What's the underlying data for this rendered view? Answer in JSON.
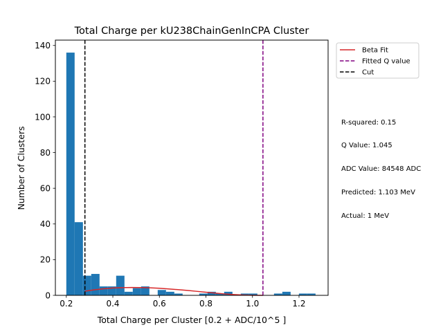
{
  "chart_data": {
    "type": "bar",
    "title": "Total Charge per kU238ChainGenInCPA Cluster",
    "xlabel": "Total Charge per Cluster [0.2 + ADC/10^5 ]",
    "ylabel": "Number of Clusters",
    "xlim": [
      0.153,
      1.325
    ],
    "ylim": [
      0,
      143
    ],
    "xticks": [
      0.2,
      0.4,
      0.6,
      0.8,
      1.0,
      1.2
    ],
    "xtick_labels": [
      "0.2",
      "0.4",
      "0.6",
      "0.8",
      "1.0",
      "1.2"
    ],
    "yticks": [
      0,
      20,
      40,
      60,
      80,
      100,
      120,
      140
    ],
    "ytick_labels": [
      "0",
      "20",
      "40",
      "60",
      "80",
      "100",
      "120",
      "140"
    ],
    "bar_color": "#1f77b4",
    "histogram": {
      "bin_edges": [
        0.2,
        0.2357,
        0.2714,
        0.3071,
        0.3428,
        0.3785,
        0.4142,
        0.4499,
        0.4856,
        0.5213,
        0.557,
        0.5927,
        0.6284,
        0.6641,
        0.6998,
        0.7355,
        0.7712,
        0.8069,
        0.8426,
        0.8783,
        0.914,
        0.9497,
        0.9854,
        1.0211,
        1.0568,
        1.0925,
        1.1282,
        1.1639,
        1.1996,
        1.2353,
        1.271
      ],
      "counts": [
        136,
        41,
        11,
        12,
        5,
        5,
        11,
        2,
        4,
        5,
        0,
        3,
        2,
        1,
        0,
        0,
        1,
        2,
        1,
        2,
        0,
        1,
        1,
        0,
        0,
        1,
        2,
        0,
        1,
        1
      ]
    },
    "series": [
      {
        "name": "Beta Fit",
        "type": "line",
        "color": "#d62728",
        "x": [
          0.28,
          0.32,
          0.36,
          0.4,
          0.44,
          0.48,
          0.52,
          0.56,
          0.6,
          0.64,
          0.68,
          0.72,
          0.76,
          0.8,
          0.84,
          0.88,
          0.92,
          0.96,
          1.0,
          1.045
        ],
        "y": [
          2.3,
          3.1,
          3.7,
          4.1,
          4.3,
          4.4,
          4.35,
          4.2,
          3.95,
          3.6,
          3.2,
          2.75,
          2.25,
          1.75,
          1.25,
          0.8,
          0.45,
          0.18,
          0.05,
          0
        ]
      },
      {
        "name": "Fitted Q value",
        "type": "vline",
        "color": "#800080",
        "x": 1.045,
        "style": "dashed"
      },
      {
        "name": "Cut",
        "type": "vline",
        "color": "#000000",
        "x": 0.28,
        "style": "dashed"
      }
    ],
    "legend": {
      "placement": "outside-top-right",
      "entries": [
        {
          "label": "Beta Fit",
          "color": "#d62728",
          "style": "solid"
        },
        {
          "label": "Fitted Q value",
          "color": "#800080",
          "style": "dashed"
        },
        {
          "label": "Cut",
          "color": "#000000",
          "style": "dashed"
        }
      ]
    },
    "annotations": [
      "R-squared: 0.15",
      "Q Value: 1.045",
      "ADC Value: 84548 ADC",
      "Predicted: 1.103 MeV",
      "Actual: 1 MeV"
    ],
    "grid": false
  }
}
